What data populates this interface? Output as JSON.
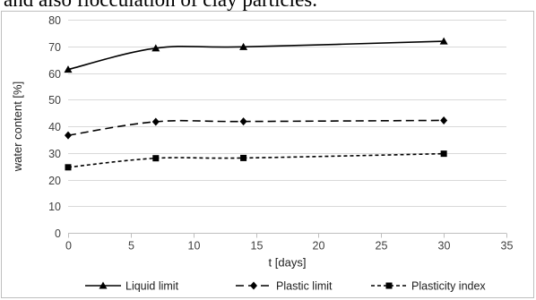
{
  "page": {
    "caption_fragment": "and also flocculation of clay particles."
  },
  "chart_data": {
    "type": "line",
    "title": "",
    "xlabel": "t [days]",
    "ylabel": "water content [%]",
    "xlim": [
      0,
      35
    ],
    "ylim": [
      0,
      80
    ],
    "x_ticks": [
      "0",
      "5",
      "10",
      "15",
      "20",
      "25",
      "30",
      "35"
    ],
    "y_ticks": [
      "0",
      "10",
      "20",
      "30",
      "40",
      "50",
      "60",
      "70",
      "80"
    ],
    "grid": "horizontal",
    "legend_position": "bottom",
    "smoothed": true,
    "series": [
      {
        "name": "Liquid limit",
        "x": [
          0,
          7,
          14,
          30
        ],
        "y": [
          61.3,
          69.3,
          69.8,
          71.9
        ],
        "marker": "triangle",
        "line_style": "solid"
      },
      {
        "name": "Plastic limit",
        "x": [
          0,
          7,
          14,
          30
        ],
        "y": [
          36.6,
          41.7,
          41.8,
          42.2
        ],
        "marker": "diamond",
        "line_style": "long-dash"
      },
      {
        "name": "Plasticity index",
        "x": [
          0,
          7,
          14,
          30
        ],
        "y": [
          24.6,
          28.0,
          28.1,
          29.7
        ],
        "marker": "square",
        "line_style": "short-dash"
      }
    ],
    "colors": {
      "line": "#000000",
      "grid": "#d9d9d9",
      "frame": "#bfbfbf",
      "axis": "#bfbfbf"
    }
  }
}
